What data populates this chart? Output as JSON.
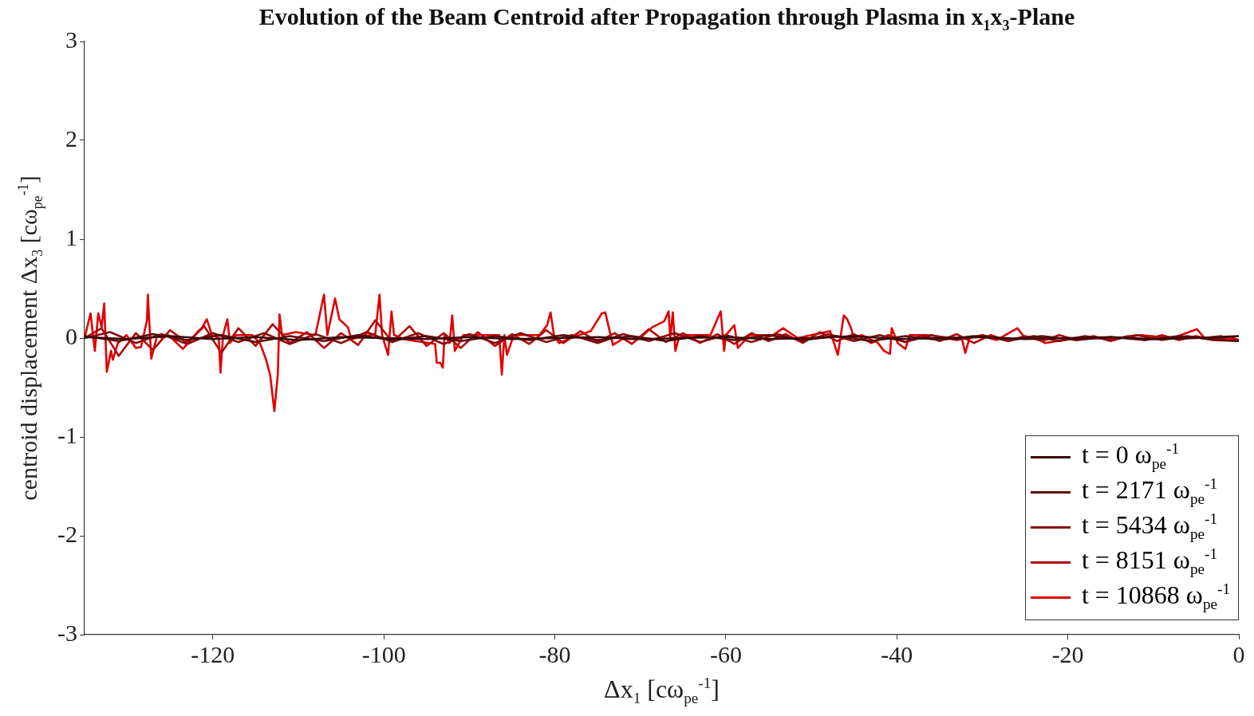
{
  "chart_data": {
    "type": "line",
    "title": "Evolution of the Beam Centroid after Propagation through Plasma in x$_{1}$x$_{3}$-Plane",
    "xlabel": "Δx$_{1}$ [cω$_{pe}$$^{-1}$]",
    "ylabel": "centroid displacement Δx$_{3}$ [cω$_{pe}$$^{-1}$]",
    "xlim": [
      -135,
      0
    ],
    "ylim": [
      -3,
      3
    ],
    "xticks": [
      -120,
      -100,
      -80,
      -60,
      -40,
      -20,
      0
    ],
    "yticks": [
      -3,
      -2,
      -1,
      0,
      1,
      2,
      3
    ],
    "legend": "bottom right",
    "series": [
      {
        "name": "t = 0 ω$_{pe}$$^{-1}$",
        "color": "#3a0808",
        "x": [
          -135,
          -130,
          -125,
          -120,
          -115,
          -110,
          -105,
          -100,
          -95,
          -90,
          -85,
          -80,
          -75,
          -70,
          -65,
          -60,
          -55,
          -50,
          -45,
          -40,
          -35,
          -30,
          -25,
          -20,
          -15,
          -10,
          -5,
          0
        ],
        "values": [
          0.01,
          -0.01,
          0.02,
          -0.01,
          0.01,
          -0.02,
          0.01,
          0,
          -0.01,
          0.01,
          -0.01,
          0,
          0.01,
          -0.01,
          0,
          0.01,
          -0.01,
          0,
          0.02,
          -0.01,
          0,
          0.01,
          -0.01,
          0,
          0.01,
          -0.01,
          0,
          0.02
        ]
      },
      {
        "name": "t = 2171 ω$_{pe}$$^{-1}$",
        "color": "#5c0a0a",
        "x": [
          -135,
          -131,
          -127,
          -123,
          -119,
          -115,
          -111,
          -107,
          -103,
          -99,
          -95,
          -91,
          -87,
          -83,
          -79,
          -75,
          -71,
          -67,
          -63,
          -59,
          -55,
          -51,
          -47,
          -43,
          -39,
          -35,
          -31,
          -27,
          -23,
          -19,
          -15,
          -11,
          -7,
          -3,
          0
        ],
        "values": [
          0.02,
          -0.03,
          0.04,
          -0.02,
          0.03,
          -0.04,
          0.02,
          -0.03,
          0.03,
          -0.02,
          0.02,
          -0.03,
          0.02,
          -0.02,
          0.03,
          -0.02,
          0.02,
          -0.03,
          0.02,
          -0.02,
          0.03,
          -0.02,
          0.02,
          -0.03,
          0.02,
          -0.02,
          0.02,
          -0.01,
          0.02,
          -0.02,
          0.01,
          -0.02,
          0.02,
          -0.01,
          -0.03
        ]
      },
      {
        "name": "t = 5434 ω$_{pe}$$^{-1}$",
        "color": "#8a0c0c",
        "x": [
          -135,
          -132,
          -129,
          -126,
          -123,
          -120,
          -117,
          -114,
          -111,
          -108,
          -105,
          -102,
          -99,
          -96,
          -93,
          -90,
          -87,
          -84,
          -81,
          -78,
          -75,
          -72,
          -69,
          -66,
          -63,
          -60,
          -57,
          -54,
          -51,
          -48,
          -45,
          -42,
          -39,
          -36,
          -33,
          -30,
          -27,
          -24,
          -21,
          -18,
          -15,
          -12,
          -9,
          -6,
          -3,
          0
        ],
        "values": [
          0,
          0.06,
          -0.05,
          0.04,
          -0.06,
          0.05,
          -0.04,
          0.05,
          -0.06,
          0.04,
          -0.05,
          0.06,
          -0.04,
          0.05,
          -0.06,
          0.04,
          -0.05,
          0.05,
          -0.04,
          0.03,
          -0.05,
          0.04,
          -0.03,
          0.05,
          -0.04,
          0.03,
          -0.04,
          0.04,
          -0.03,
          0.04,
          -0.03,
          0.03,
          -0.04,
          0.03,
          -0.02,
          0.03,
          -0.03,
          0.02,
          -0.03,
          0.02,
          -0.02,
          0.03,
          -0.02,
          0.02,
          -0.02,
          -0.03
        ]
      },
      {
        "name": "t = 8151 ω$_{pe}$$^{-1}$",
        "color": "#b50808",
        "x": [
          -135,
          -133,
          -131,
          -129,
          -127,
          -125,
          -123,
          -121,
          -119,
          -117,
          -115,
          -113,
          -111,
          -109,
          -107,
          -105,
          -103,
          -101,
          -99,
          -97,
          -95,
          -93,
          -91,
          -89,
          -87,
          -85,
          -83,
          -81,
          -79,
          -77,
          -75,
          -73,
          -71,
          -69,
          -67,
          -65,
          -63,
          -61,
          -59,
          -57,
          -55,
          -53,
          -51,
          -49,
          -47,
          -45,
          -43,
          -41,
          -39,
          -37,
          -35,
          -33,
          -31,
          -29,
          -27,
          -25,
          -23,
          -21,
          -19,
          -17,
          -15,
          -13,
          -11,
          -9,
          -7,
          -5,
          -3,
          -1,
          0
        ],
        "values": [
          0,
          0.1,
          -0.18,
          0.05,
          -0.12,
          0.08,
          -0.05,
          0.12,
          -0.15,
          0.1,
          -0.08,
          0.14,
          -0.05,
          0.06,
          -0.1,
          0.05,
          -0.07,
          0.18,
          -0.04,
          0.12,
          -0.08,
          0.05,
          -0.1,
          0.06,
          -0.08,
          0.04,
          -0.06,
          0.08,
          -0.05,
          0.07,
          -0.04,
          0.05,
          -0.06,
          0.09,
          -0.04,
          0.05,
          -0.05,
          0.04,
          -0.06,
          0.05,
          -0.03,
          0.04,
          -0.05,
          0.06,
          -0.03,
          0.04,
          -0.05,
          0.03,
          -0.04,
          0.03,
          -0.03,
          0.04,
          -0.05,
          0.03,
          -0.03,
          0.02,
          -0.03,
          0.03,
          -0.02,
          0.02,
          -0.03,
          0.02,
          -0.02,
          0.03,
          -0.02,
          0.02,
          -0.02,
          0.01,
          -0.02
        ]
      },
      {
        "name": "t = 10868 ω$_{pe}$$^{-1}$",
        "color": "#e00000",
        "x": [
          -135,
          -134.3,
          -133.8,
          -133.4,
          -133.0,
          -132.7,
          -132.4,
          -131.9,
          -131.7,
          -131.1,
          -130.1,
          -129.0,
          -128.4,
          -127.7,
          -127.6,
          -127.2,
          -126.5,
          -125.9,
          -125.2,
          -123.5,
          -121.7,
          -121.3,
          -120.7,
          -120.1,
          -119.3,
          -119.1,
          -118.8,
          -118.3,
          -118.0,
          -117.3,
          -115.4,
          -114.5,
          -113.8,
          -113.3,
          -112.8,
          -112.4,
          -112.2,
          -111.9,
          -110.3,
          -108.0,
          -107.0,
          -106.6,
          -105.7,
          -105.2,
          -104.2,
          -103.8,
          -101.0,
          -100.5,
          -100.2,
          -99.5,
          -99.1,
          -98.8,
          -97.7,
          -94.0,
          -93.8,
          -93.4,
          -93.1,
          -92.9,
          -92.3,
          -92.0,
          -91.7,
          -90.7,
          -87.9,
          -86.5,
          -86.2,
          -85.9,
          -85.6,
          -84.8,
          -83.3,
          -81.8,
          -80.9,
          -80.5,
          -80.1,
          -79.5,
          -78.1,
          -75.8,
          -74.5,
          -74.1,
          -73.8,
          -73.2,
          -72.1,
          -70.2,
          -68.6,
          -67.2,
          -66.7,
          -66.5,
          -66.2,
          -65.9,
          -65.5,
          -64.6,
          -62.8,
          -61.8,
          -60.6,
          -60.2,
          -60.0,
          -59.0,
          -58.6,
          -57.2,
          -55.3,
          -54.5,
          -53.3,
          -51.6,
          -47.8,
          -47.5,
          -46.9,
          -46.2,
          -45.8,
          -45.4,
          -45.0,
          -44.1,
          -42.2,
          -41.5,
          -40.8,
          -40.6,
          -39.9,
          -39.0,
          -38.5,
          -36.6,
          -33.4,
          -32.4,
          -32.0,
          -31.5,
          -30.1,
          -28.3,
          -25.9,
          -25.0,
          -23.6,
          -22.7,
          -18.9,
          -15.2,
          -14.3,
          -11.5,
          -7.7,
          -4.9,
          -4.0,
          -2.1,
          0
        ],
        "values": [
          0,
          0.25,
          -0.13,
          0.25,
          0.11,
          0.35,
          -0.34,
          -0.13,
          -0.22,
          -0.05,
          0.03,
          -0.1,
          -0.09,
          0.18,
          0.44,
          -0.21,
          0.03,
          0,
          0.03,
          -0.11,
          0.07,
          0.1,
          0.19,
          0.03,
          0,
          -0.35,
          0.03,
          0.19,
          -0.05,
          0.03,
          0.03,
          -0.05,
          -0.21,
          -0.37,
          -0.74,
          -0.37,
          0.24,
          0.03,
          0.06,
          0.03,
          0.44,
          0.03,
          0.4,
          0.19,
          0.11,
          -0.01,
          0.04,
          0.44,
          0.03,
          -0.17,
          0.27,
          0.03,
          -0.01,
          -0.06,
          -0.25,
          -0.25,
          -0.3,
          0.03,
          -0.05,
          0.23,
          -0.13,
          0.03,
          0.03,
          0.03,
          -0.37,
          0.03,
          -0.17,
          0.03,
          0.03,
          0.03,
          0.13,
          0.26,
          0.03,
          -0.05,
          0,
          0.07,
          0.25,
          0.26,
          0.15,
          -0.07,
          -0.01,
          -0.01,
          0.11,
          0.17,
          0.27,
          0,
          0.26,
          -0.13,
          0,
          0.03,
          0.03,
          0.03,
          0.27,
          -0.13,
          0.03,
          0.13,
          -0.1,
          0.03,
          0.03,
          0.03,
          0.1,
          0,
          0.07,
          -0.01,
          -0.17,
          0.23,
          0.19,
          0.11,
          0,
          0.03,
          -0.05,
          -0.13,
          -0.16,
          0.1,
          -0.05,
          -0.11,
          0.03,
          0.03,
          0,
          0,
          -0.15,
          0,
          0.02,
          -0.02,
          0.1,
          0,
          0,
          -0.05,
          0,
          0,
          0,
          0.03,
          0,
          0.09,
          0,
          0.02,
          -0.03
        ]
      }
    ]
  }
}
